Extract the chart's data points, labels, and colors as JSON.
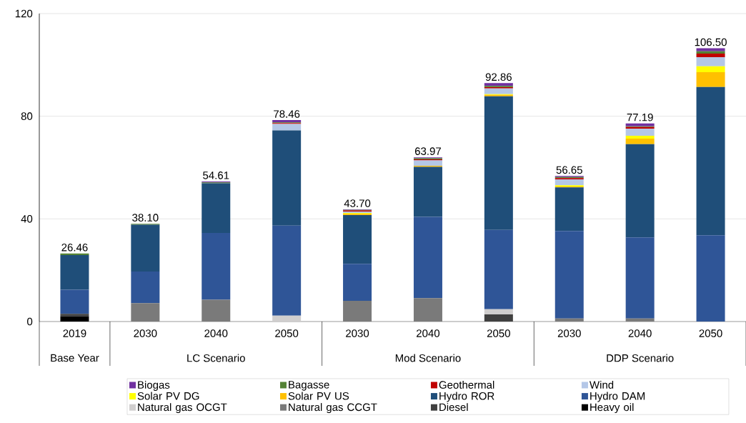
{
  "chart_data": {
    "type": "bar",
    "stacked": true,
    "categories": [
      "2019",
      "2030",
      "2040",
      "2050",
      "2030",
      "2040",
      "2050",
      "2030",
      "2040",
      "2050"
    ],
    "annotations": [
      "Base Year",
      "LC Scenario",
      "Mod  Scenario",
      "DDP  Scenario"
    ],
    "ylim": [
      0,
      120
    ],
    "yticks": [
      0,
      40,
      80,
      120
    ],
    "grid": "y",
    "legend": "bottom",
    "totals": [
      "26.46",
      "38.10",
      "54.61",
      "78.46",
      "43.70",
      "63.97",
      "92.86",
      "56.65",
      "77.19",
      "106.50"
    ],
    "series": [
      {
        "name": "Heavy oil",
        "color": "#000000",
        "values": [
          2.0,
          0,
          0,
          0,
          0,
          0,
          0,
          0,
          0,
          0
        ]
      },
      {
        "name": "Diesel",
        "color": "#404040",
        "values": [
          1.0,
          0,
          0,
          0,
          0,
          0,
          2.8,
          0,
          0,
          0
        ]
      },
      {
        "name": "Natural gas CCGT",
        "color": "#7a7a7a",
        "values": [
          0,
          7.2,
          8.5,
          0,
          8.1,
          9.1,
          0,
          1.2,
          1.2,
          0
        ]
      },
      {
        "name": "Natural gas OCGT",
        "color": "#d0cece",
        "values": [
          0,
          0,
          0,
          2.3,
          0,
          0,
          2.0,
          0,
          0,
          0
        ]
      },
      {
        "name": "Hydro DAM",
        "color": "#2f5597",
        "values": [
          9.4,
          12.3,
          26.0,
          35.1,
          14.4,
          31.7,
          30.9,
          34.1,
          31.6,
          33.6
        ]
      },
      {
        "name": "Hydro ROR",
        "color": "#1f4e79",
        "values": [
          13.5,
          18.2,
          19.4,
          37.1,
          19.0,
          19.5,
          52.1,
          17.0,
          36.3,
          57.8
        ]
      },
      {
        "name": "Solar PV US",
        "color": "#ffc000",
        "values": [
          0,
          0,
          0,
          0,
          0.5,
          0.4,
          0.5,
          0.3,
          2.2,
          5.8
        ]
      },
      {
        "name": "Solar PV DG",
        "color": "#ffff00",
        "values": [
          0,
          0,
          0,
          0,
          0.3,
          0,
          0.3,
          0.5,
          1.1,
          2.3
        ]
      },
      {
        "name": "Wind",
        "color": "#b4c7e7",
        "values": [
          0,
          0,
          null,
          2.5,
          0.6,
          2.1,
          2.2,
          2.3,
          2.8,
          3.5
        ]
      },
      {
        "name": "Geothermal",
        "color": "#c00000",
        "values": [
          0,
          0,
          0,
          0.3,
          0.4,
          0.4,
          0.5,
          0.5,
          0.6,
          1.4
        ]
      },
      {
        "name": "Bagasse",
        "color": "#548235",
        "values": [
          0.6,
          0.4,
          0.3,
          0.3,
          0.2,
          0.4,
          0.5,
          0.4,
          0.3,
          0.9
        ]
      },
      {
        "name": "Biogas",
        "color": "#7030a0",
        "values": [
          0,
          0,
          0.4,
          0.9,
          0.2,
          0.4,
          1.1,
          0.4,
          1.1,
          1.2
        ]
      }
    ]
  }
}
